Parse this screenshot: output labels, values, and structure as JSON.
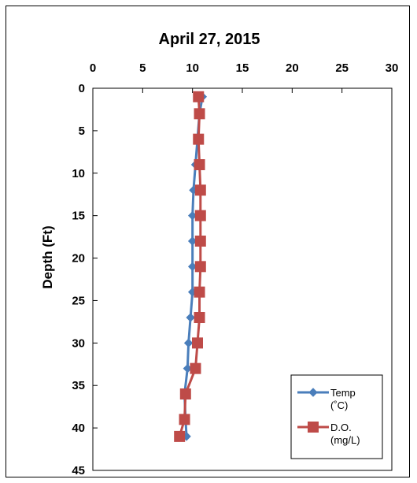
{
  "chart_data": {
    "type": "line",
    "title": "April 27, 2015",
    "ylabel": "Depth (Ft)",
    "xlabel": "",
    "x_axis_position": "top",
    "y_axis_inverted": true,
    "xlim": [
      0,
      30
    ],
    "ylim": [
      0,
      45
    ],
    "x_ticks": [
      "0",
      "5",
      "10",
      "15",
      "20",
      "25",
      "30"
    ],
    "y_ticks": [
      "0",
      "5",
      "10",
      "15",
      "20",
      "25",
      "30",
      "35",
      "40",
      "45"
    ],
    "grid": false,
    "legend_position": "bottom-right",
    "series": [
      {
        "name": "Temp",
        "unit": "(˚C)",
        "color": "#4a7ebb",
        "marker": "diamond",
        "depth": [
          1,
          3,
          6,
          9,
          12,
          15,
          18,
          21,
          24,
          27,
          30,
          33,
          36,
          39,
          41
        ],
        "value": [
          11.0,
          10.7,
          10.5,
          10.3,
          10.1,
          10.0,
          10.0,
          10.0,
          10.0,
          9.8,
          9.6,
          9.5,
          9.2,
          9.3,
          9.4
        ]
      },
      {
        "name": "D.O.",
        "unit": "(mg/L)",
        "color": "#be4b48",
        "marker": "square",
        "depth": [
          1,
          3,
          6,
          9,
          12,
          15,
          18,
          21,
          24,
          27,
          30,
          33,
          36,
          39,
          41
        ],
        "value": [
          10.6,
          10.7,
          10.6,
          10.7,
          10.8,
          10.8,
          10.8,
          10.8,
          10.7,
          10.7,
          10.5,
          10.3,
          9.3,
          9.2,
          8.7
        ]
      }
    ]
  }
}
